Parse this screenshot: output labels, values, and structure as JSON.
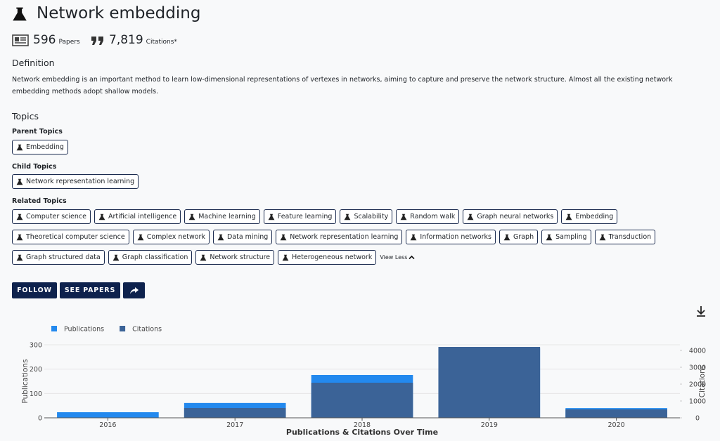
{
  "header": {
    "title": "Network embedding",
    "papers_count": 596,
    "papers_label": "Papers",
    "citations_count": "7,819",
    "citations_label": "Citations*"
  },
  "definition": {
    "heading": "Definition",
    "text": "Network embedding is an important method to learn low-dimensional representations of vertexes in networks, aiming to capture and preserve the network structure. Almost all the existing network embedding methods adopt shallow models."
  },
  "topics": {
    "heading": "Topics",
    "parent": {
      "heading": "Parent Topics",
      "items": [
        "Embedding"
      ]
    },
    "child": {
      "heading": "Child Topics",
      "items": [
        "Network representation learning"
      ]
    },
    "related": {
      "heading": "Related Topics",
      "items": [
        "Computer science",
        "Artificial intelligence",
        "Machine learning",
        "Feature learning",
        "Scalability",
        "Random walk",
        "Graph neural networks",
        "Embedding",
        "Theoretical computer science",
        "Complex network",
        "Data mining",
        "Network representation learning",
        "Information networks",
        "Graph",
        "Sampling",
        "Transduction",
        "Graph structured data",
        "Graph classification",
        "Network structure",
        "Heterogeneous network"
      ],
      "toggle": "View Less"
    }
  },
  "buttons": {
    "follow": "FOLLOW",
    "see_papers": "SEE PAPERS"
  },
  "chart_data": {
    "type": "bar",
    "x_label": "Publications & Citations Over Time",
    "y_label": "Publications",
    "y2_label": "Citations",
    "categories": [
      "2016",
      "2017",
      "2018",
      "2019",
      "2020"
    ],
    "series": [
      {
        "name": "Publications",
        "color": "#2389ee",
        "values": [
          23,
          61,
          176,
          286,
          40
        ]
      },
      {
        "name": "Citations",
        "color": "#3b6397",
        "axis": "y2",
        "values": [
          0,
          583,
          2083,
          4208,
          500
        ]
      }
    ],
    "ylim": [
      0,
      300
    ],
    "yticks": [
      0,
      100,
      200,
      300
    ],
    "y2lim": [
      0,
      4333
    ],
    "y2ticks": [
      0,
      1000,
      2000,
      3000,
      4000
    ],
    "grid": true,
    "legend": "top-left"
  }
}
